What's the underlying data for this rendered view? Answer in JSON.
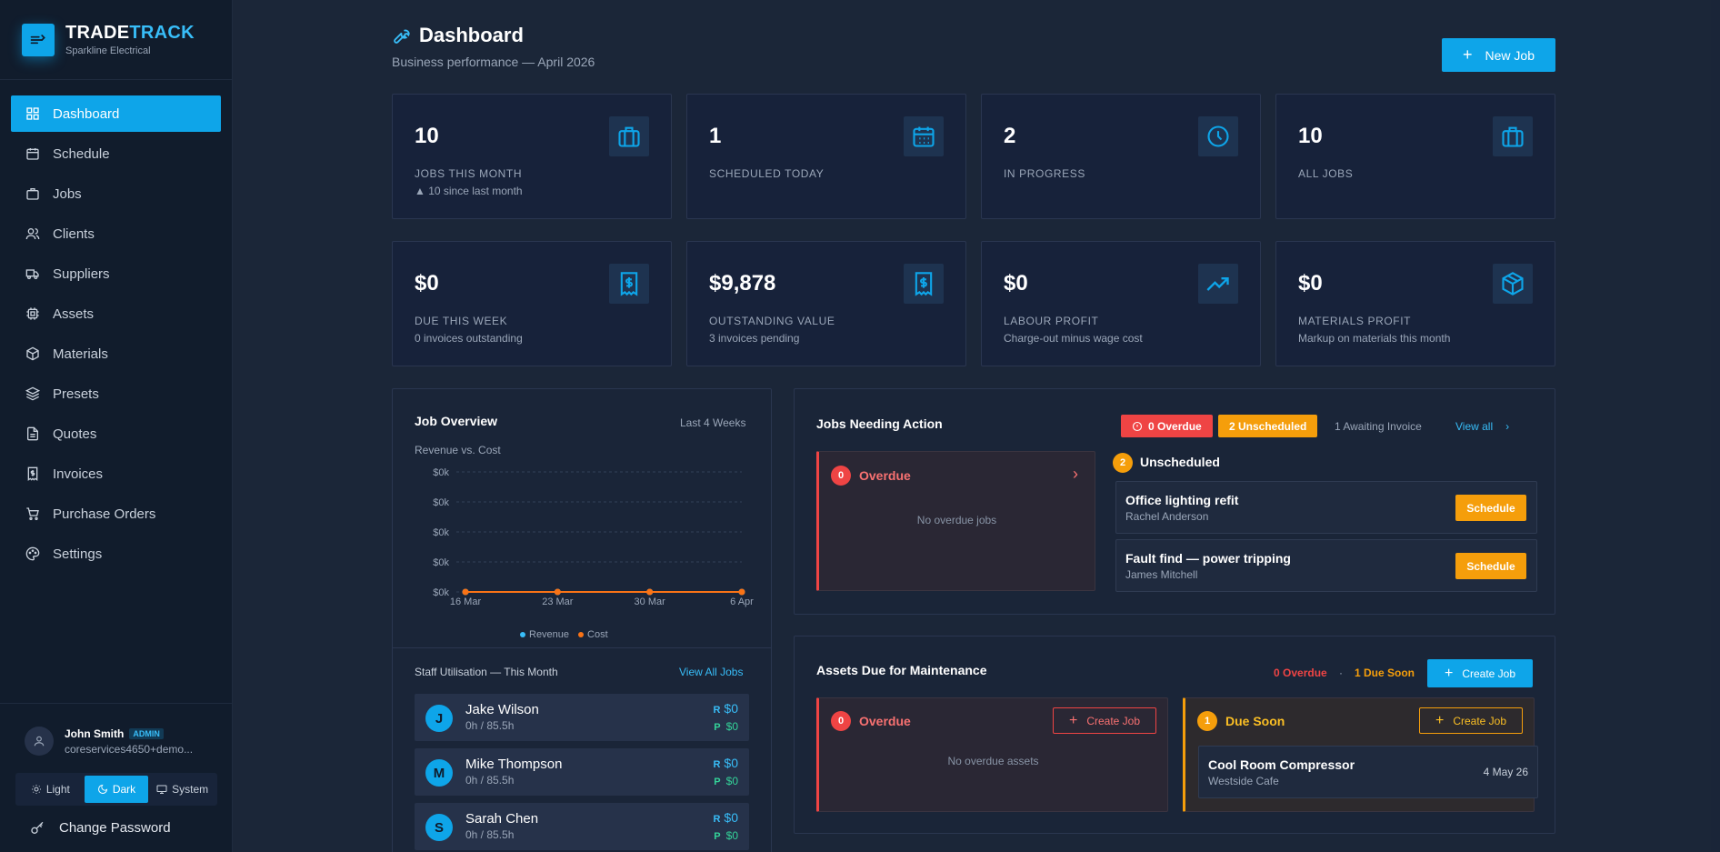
{
  "brand": {
    "name_part1": "TRADE",
    "name_part2": "TRACK",
    "company": "Sparkline Electrical"
  },
  "nav": [
    {
      "label": "Dashboard",
      "icon": "grid-icon",
      "active": true
    },
    {
      "label": "Schedule",
      "icon": "calendar-icon"
    },
    {
      "label": "Jobs",
      "icon": "briefcase-icon"
    },
    {
      "label": "Clients",
      "icon": "users-icon"
    },
    {
      "label": "Suppliers",
      "icon": "truck-icon"
    },
    {
      "label": "Assets",
      "icon": "cpu-icon"
    },
    {
      "label": "Materials",
      "icon": "box-icon"
    },
    {
      "label": "Presets",
      "icon": "layers-icon"
    },
    {
      "label": "Quotes",
      "icon": "file-icon"
    },
    {
      "label": "Invoices",
      "icon": "receipt-icon"
    },
    {
      "label": "Purchase Orders",
      "icon": "cart-icon"
    },
    {
      "label": "Settings",
      "icon": "palette-icon"
    }
  ],
  "user": {
    "name": "John Smith",
    "role": "ADMIN",
    "email": "coreservices4650+demo..."
  },
  "theme": {
    "options": [
      "Light",
      "Dark",
      "System"
    ],
    "selected": "Dark"
  },
  "change_password": "Change Password",
  "header": {
    "title": "Dashboard",
    "subtitle": "Business performance — April 2026",
    "new_job": "New Job"
  },
  "stats": [
    {
      "value": "10",
      "label": "Jobs this month",
      "sub": "▲ 10 since last month",
      "icon": "briefcase-icon"
    },
    {
      "value": "1",
      "label": "Scheduled today",
      "sub": "",
      "icon": "calendar-icon"
    },
    {
      "value": "2",
      "label": "In progress",
      "sub": "",
      "icon": "clock-icon"
    },
    {
      "value": "10",
      "label": "All jobs",
      "sub": "",
      "icon": "briefcase-icon"
    },
    {
      "value": "$0",
      "label": "Due this week",
      "sub": "0 invoices outstanding",
      "icon": "receipt-icon"
    },
    {
      "value": "$9,878",
      "label": "Outstanding value",
      "sub": "3 invoices pending",
      "icon": "receipt-icon"
    },
    {
      "value": "$0",
      "label": "Labour profit",
      "sub": "Charge-out minus wage cost",
      "icon": "trending-up-icon"
    },
    {
      "value": "$0",
      "label": "Materials profit",
      "sub": "Markup on materials this month",
      "icon": "package-icon"
    }
  ],
  "job_overview": {
    "title": "Job Overview",
    "range": "Last 4 Weeks",
    "subtitle": "Revenue vs. Cost",
    "legend": [
      "Revenue",
      "Cost"
    ]
  },
  "chart_data": {
    "type": "line",
    "title": "Revenue vs. Cost",
    "categories": [
      "16 Mar",
      "23 Mar",
      "30 Mar",
      "6 Apr"
    ],
    "y_ticks": [
      "$0k",
      "$0k",
      "$0k",
      "$0k",
      "$0k"
    ],
    "series": [
      {
        "name": "Revenue",
        "color": "#38bdf8",
        "values": [
          0,
          0,
          0,
          0
        ]
      },
      {
        "name": "Cost",
        "color": "#f97316",
        "values": [
          0,
          0,
          0,
          0
        ]
      }
    ],
    "grid": true,
    "legend_position": "bottom"
  },
  "staff_utilisation": {
    "title": "Staff Utilisation — This Month",
    "link": "View All Jobs",
    "rows": [
      {
        "initial": "J",
        "name": "Jake Wilson",
        "hours": "0h / 85.5h",
        "r_label": "R",
        "r_value": "$0",
        "p_label": "P",
        "p_value": "$0"
      },
      {
        "initial": "M",
        "name": "Mike Thompson",
        "hours": "0h / 85.5h",
        "r_label": "R",
        "r_value": "$0",
        "p_label": "P",
        "p_value": "$0"
      },
      {
        "initial": "S",
        "name": "Sarah Chen",
        "hours": "0h / 85.5h",
        "r_label": "R",
        "r_value": "$0",
        "p_label": "P",
        "p_value": "$0"
      }
    ]
  },
  "jobs_needing_action": {
    "title": "Jobs Needing Action",
    "badge_overdue": "0 Overdue",
    "badge_unscheduled": "2 Unscheduled",
    "awaiting": "1 Awaiting Invoice",
    "view_all": "View all",
    "overdue": {
      "count": "0",
      "title": "Overdue",
      "empty": "No overdue jobs"
    },
    "unscheduled": {
      "count": "2",
      "title": "Unscheduled",
      "jobs": [
        {
          "title": "Office lighting refit",
          "client": "Rachel Anderson",
          "action": "Schedule"
        },
        {
          "title": "Fault find — power tripping",
          "client": "James Mitchell",
          "action": "Schedule"
        }
      ]
    }
  },
  "assets": {
    "title": "Assets Due for Maintenance",
    "overdue_text": "0 Overdue",
    "separator": "·",
    "due_soon_text": "1 Due Soon",
    "create_job": "Create Job",
    "overdue": {
      "count": "0",
      "title": "Overdue",
      "button": "Create Job",
      "empty": "No overdue assets"
    },
    "due_soon": {
      "count": "1",
      "title": "Due Soon",
      "button": "Create Job",
      "items": [
        {
          "name": "Cool Room Compressor",
          "location": "Westside Cafe",
          "date": "4 May 26"
        }
      ]
    }
  }
}
